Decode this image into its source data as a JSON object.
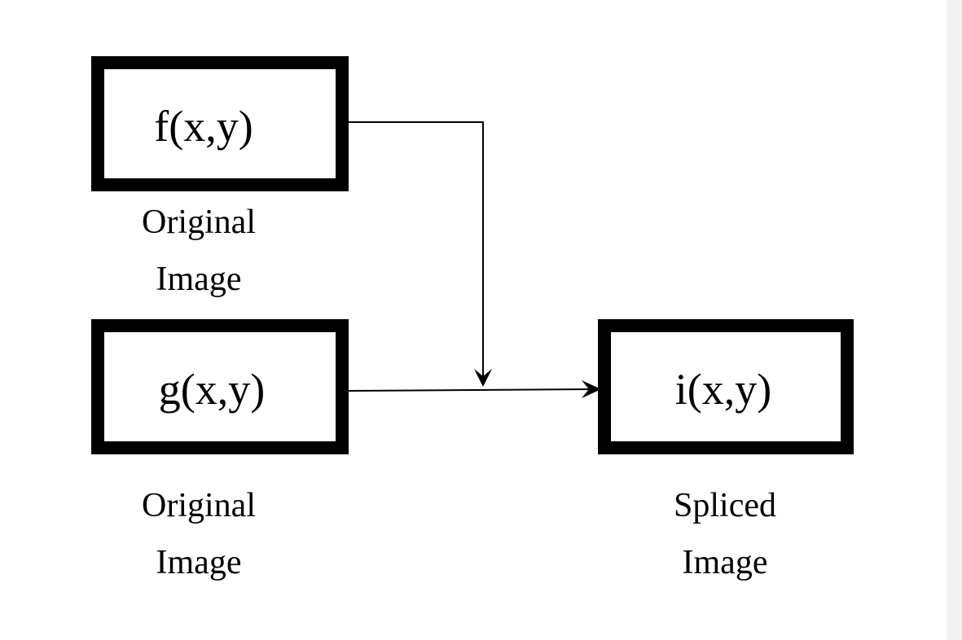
{
  "diagram": {
    "nodes": {
      "f": {
        "label": "f(x,y)",
        "caption_line1": "Original",
        "caption_line2": "Image"
      },
      "g": {
        "label": "g(x,y)",
        "caption_line1": "Original",
        "caption_line2": "Image"
      },
      "i": {
        "label": "i(x,y)",
        "caption_line1": "Spliced",
        "caption_line2": "Image"
      }
    },
    "edges": [
      {
        "from": "f",
        "to": "g-i-line"
      },
      {
        "from": "g",
        "to": "i"
      }
    ],
    "colors": {
      "stroke": "#000000",
      "background": "#ffffff",
      "side_strip": "#f1f1f1"
    }
  }
}
